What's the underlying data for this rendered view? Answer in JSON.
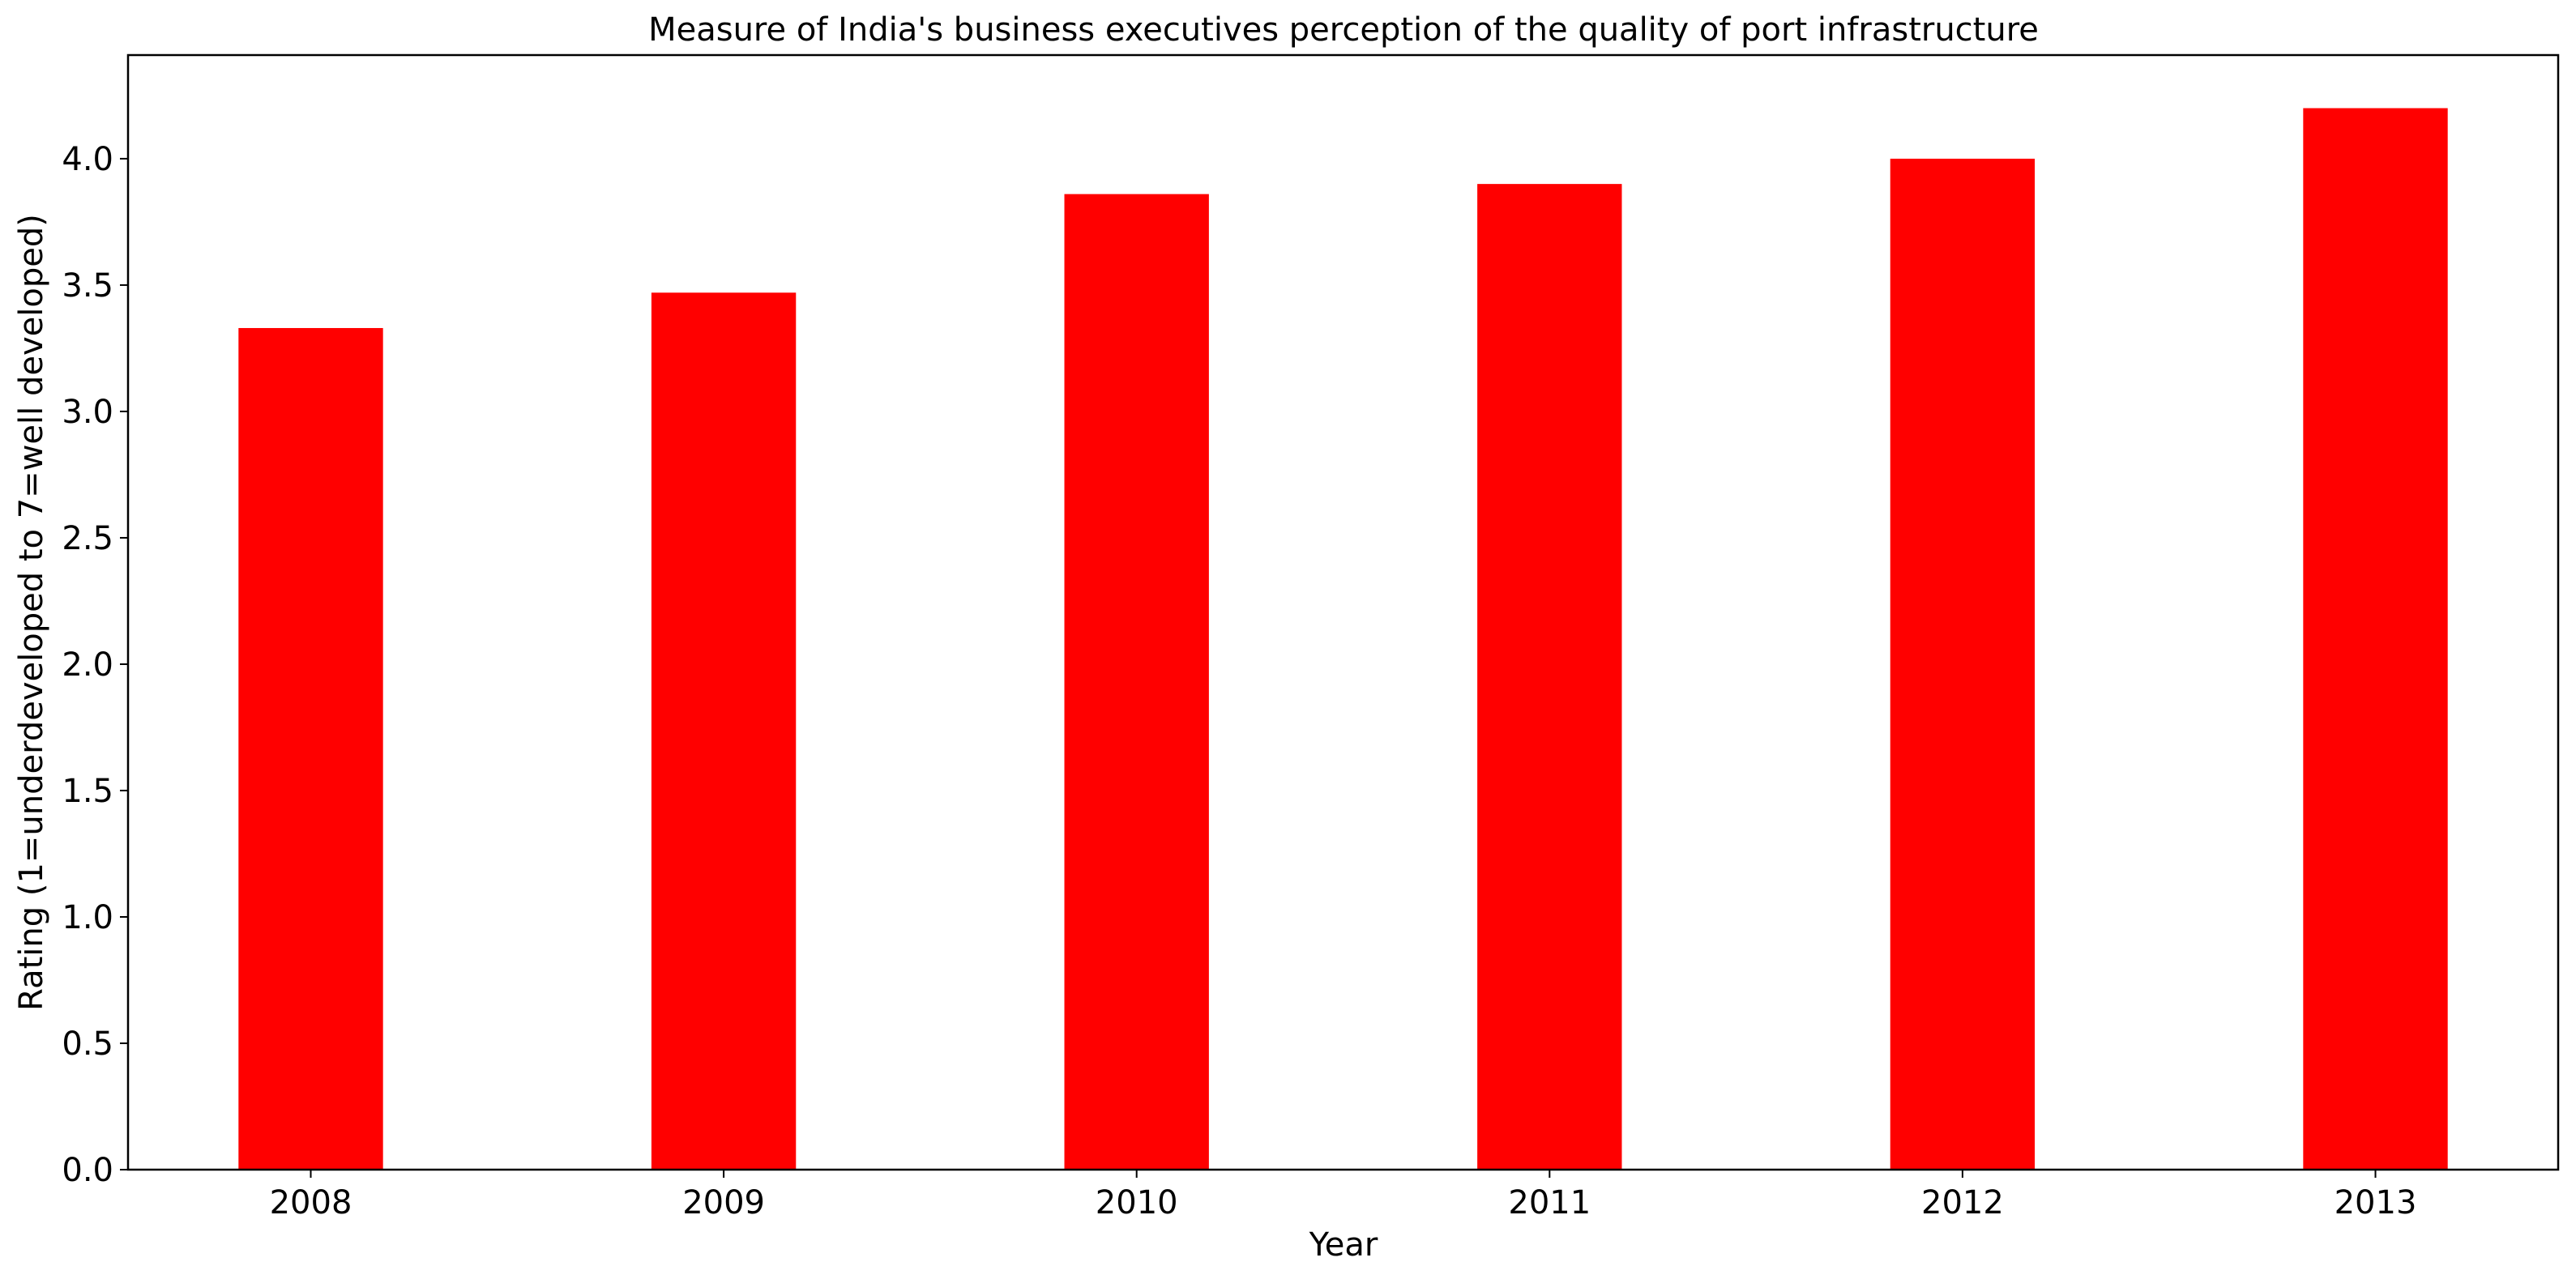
{
  "chart_data": {
    "type": "bar",
    "title": "Measure of India's business executives perception of the quality of port infrastructure",
    "xlabel": "Year",
    "ylabel": "Rating (1=underdeveloped to 7=well developed)",
    "categories": [
      "2008",
      "2009",
      "2010",
      "2011",
      "2012",
      "2013"
    ],
    "values": [
      3.33,
      3.47,
      3.86,
      3.9,
      4.0,
      4.2
    ],
    "ylim": [
      0,
      4.41
    ],
    "yticks": [
      "0.0",
      "0.5",
      "1.0",
      "1.5",
      "2.0",
      "2.5",
      "3.0",
      "3.5",
      "4.0"
    ],
    "grid": false,
    "legend": "none",
    "bar_color": "#ff0000"
  }
}
